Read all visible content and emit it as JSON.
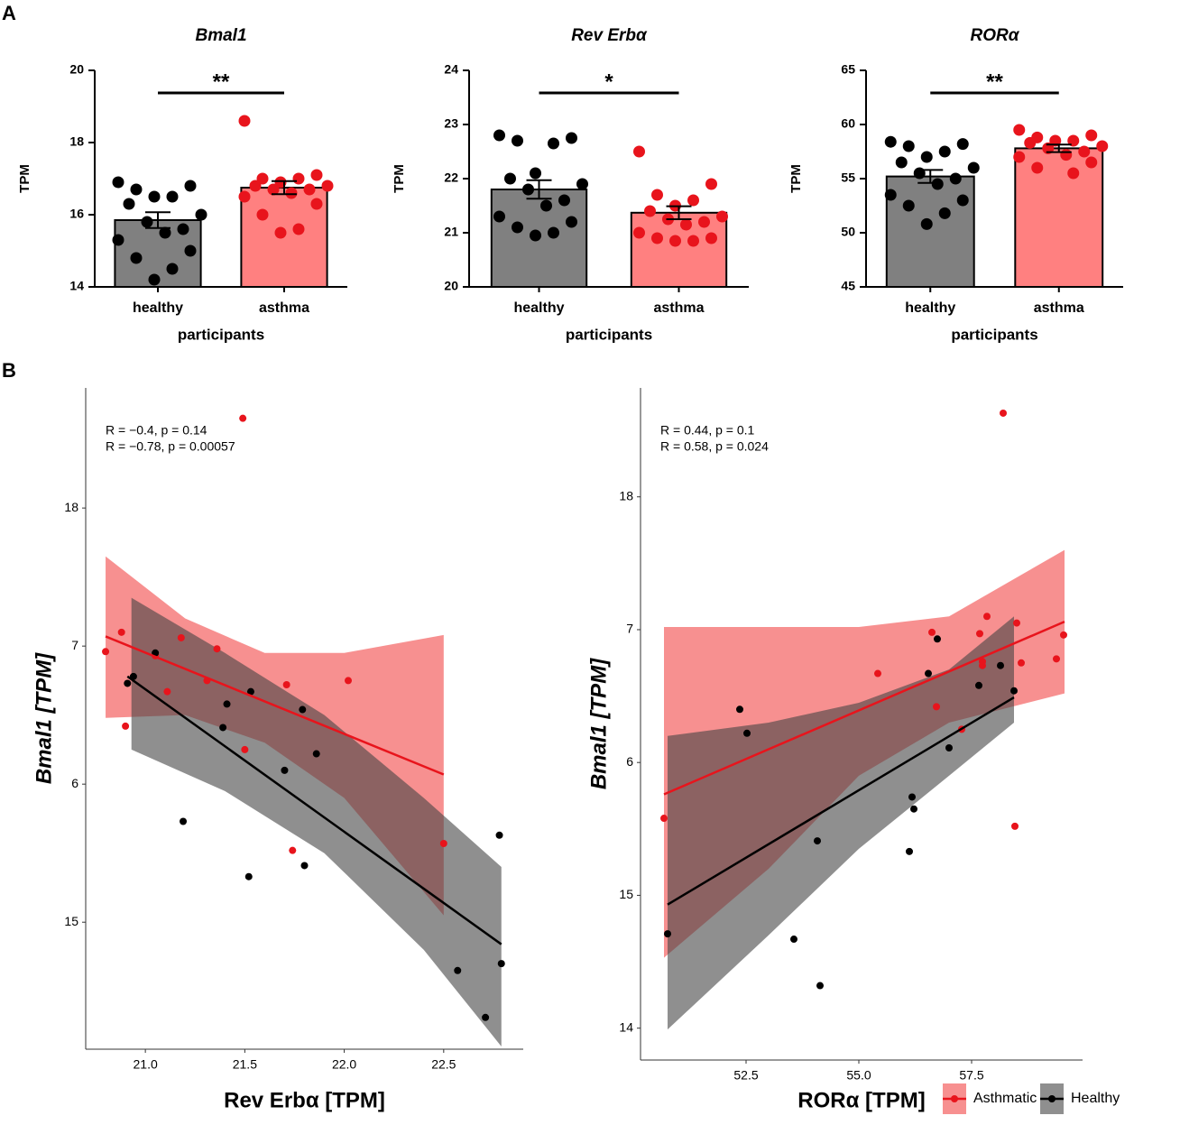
{
  "panels": [
    "A",
    "B"
  ],
  "chart_data": [
    {
      "type": "bar",
      "title": "Bmal1",
      "xlabel": "participants",
      "ylabel": "TPM",
      "categories": [
        "healthy",
        "asthma"
      ],
      "values": [
        15.85,
        16.75
      ],
      "errors": [
        0.22,
        0.18
      ],
      "colors": [
        "#808080",
        "#ff8080"
      ],
      "point_colors": [
        "#000000",
        "#e8141c"
      ],
      "points": [
        [
          16.9,
          16.8,
          16.7,
          16.5,
          16.5,
          16.3,
          16.0,
          15.8,
          15.6,
          15.5,
          15.3,
          15.0,
          14.8,
          14.5,
          14.2
        ],
        [
          18.6,
          17.1,
          17.0,
          17.0,
          16.9,
          16.8,
          16.8,
          16.7,
          16.7,
          16.6,
          16.5,
          16.3,
          16.0,
          15.6,
          15.5
        ]
      ],
      "annotation": "**",
      "ylim": [
        14,
        20
      ],
      "yticks": [
        14,
        16,
        18,
        20
      ]
    },
    {
      "type": "bar",
      "title": "Rev Erbα",
      "xlabel": "participants",
      "ylabel": "TPM",
      "categories": [
        "healthy",
        "asthma"
      ],
      "values": [
        21.8,
        21.37
      ],
      "errors": [
        0.17,
        0.12
      ],
      "colors": [
        "#808080",
        "#ff8080"
      ],
      "point_colors": [
        "#000000",
        "#e8141c"
      ],
      "points": [
        [
          22.8,
          22.75,
          22.7,
          22.65,
          22.1,
          22.0,
          21.9,
          21.8,
          21.6,
          21.5,
          21.3,
          21.2,
          21.1,
          21.0,
          20.95
        ],
        [
          22.5,
          21.9,
          21.7,
          21.6,
          21.5,
          21.4,
          21.3,
          21.25,
          21.2,
          21.15,
          21.0,
          20.9,
          20.9,
          20.85,
          20.85
        ]
      ],
      "annotation": "*",
      "ylim": [
        20,
        24
      ],
      "yticks": [
        20,
        21,
        22,
        23,
        24
      ]
    },
    {
      "type": "bar",
      "title": "RORα",
      "xlabel": "participants",
      "ylabel": "TPM",
      "categories": [
        "healthy",
        "asthma"
      ],
      "values": [
        55.2,
        57.8
      ],
      "errors": [
        0.6,
        0.35
      ],
      "colors": [
        "#808080",
        "#ff8080"
      ],
      "point_colors": [
        "#000000",
        "#e8141c"
      ],
      "points": [
        [
          58.4,
          58.2,
          58.0,
          57.5,
          57.0,
          56.5,
          56.0,
          55.5,
          55.0,
          54.5,
          53.5,
          53.0,
          52.5,
          51.8,
          50.8
        ],
        [
          59.5,
          59.0,
          58.8,
          58.5,
          58.5,
          58.3,
          58.0,
          57.8,
          57.5,
          57.2,
          57.0,
          56.5,
          56.0,
          55.5
        ]
      ],
      "annotation": "**",
      "ylim": [
        45,
        65
      ],
      "yticks": [
        45,
        50,
        55,
        60,
        65
      ]
    },
    {
      "type": "scatter",
      "xlabel": "Rev Erbα [TPM]",
      "ylabel": "Bmal1 [TPM]",
      "xlim": [
        20.7,
        22.9
      ],
      "xticks": [
        {
          "value": 21,
          "label": "21.0"
        },
        21.5,
        {
          "value": 22,
          "label": "22.0"
        },
        22.5
      ],
      "ylim": [
        14.08,
        18.87
      ],
      "yticks": [
        18,
        {
          "value": 17,
          "label": "7"
        },
        {
          "value": 16,
          "label": "6"
        },
        15
      ],
      "legend": false,
      "series": [
        {
          "name": "Asthmatic",
          "color": "#e8141c",
          "band_color": "#f46b6b",
          "annotation": "R = −0.4, p = 0.14",
          "x": [
            20.8,
            20.88,
            20.9,
            21.05,
            21.11,
            21.18,
            21.36,
            21.31,
            21.5,
            21.49,
            21.71,
            21.74,
            22.02,
            22.5
          ],
          "y": [
            16.96,
            17.1,
            16.42,
            16.93,
            16.67,
            17.06,
            16.98,
            16.75,
            16.25,
            18.65,
            16.72,
            15.52,
            16.75,
            15.57
          ],
          "fit_x": [
            20.8,
            22.5
          ],
          "fit_y": [
            17.07,
            16.07
          ],
          "band_x": [
            20.8,
            21.2,
            21.6,
            22.0,
            22.5
          ],
          "band_upper": [
            17.65,
            17.2,
            16.95,
            16.95,
            17.08
          ],
          "band_lower": [
            16.48,
            16.5,
            16.3,
            15.9,
            15.05
          ]
        },
        {
          "name": "Healthy",
          "color": "#000000",
          "band_color": "#444444",
          "annotation": "R = −0.78, p = 0.00057",
          "x": [
            20.91,
            20.94,
            21.05,
            21.19,
            21.41,
            21.39,
            21.53,
            21.52,
            21.7,
            21.79,
            21.8,
            21.86,
            22.57,
            22.71,
            22.78,
            22.79
          ],
          "y": [
            16.73,
            16.78,
            16.95,
            15.73,
            16.58,
            16.41,
            16.67,
            15.33,
            16.1,
            16.54,
            15.41,
            16.22,
            14.65,
            14.31,
            15.63,
            14.7
          ],
          "fit_x": [
            20.91,
            22.79
          ],
          "fit_y": [
            16.78,
            14.84
          ],
          "band_x": [
            20.93,
            21.4,
            21.9,
            22.4,
            22.79
          ],
          "band_upper": [
            17.35,
            16.95,
            16.5,
            15.9,
            15.4
          ],
          "band_lower": [
            16.25,
            15.95,
            15.5,
            14.8,
            14.1
          ]
        }
      ]
    },
    {
      "type": "scatter",
      "xlabel": "RORα [TPM]",
      "ylabel": "Bmal1 [TPM]",
      "xlim": [
        50.16,
        59.96
      ],
      "xticks": [
        52.5,
        {
          "value": 55,
          "label": "55.0"
        },
        57.5
      ],
      "ylim": [
        13.76,
        18.82
      ],
      "yticks": [
        18,
        {
          "value": 17,
          "label": "7"
        },
        {
          "value": 16,
          "label": "6"
        },
        15,
        14
      ],
      "legend": "bottom-right",
      "series": [
        {
          "name": "Asthmatic",
          "color": "#e8141c",
          "band_color": "#f46b6b",
          "annotation": "R = 0.44, p = 0.1",
          "x": [
            50.68,
            55.42,
            56.62,
            56.72,
            57.28,
            57.68,
            57.74,
            57.84,
            58.2,
            58.5,
            58.46,
            58.6,
            59.38,
            59.54,
            57.74
          ],
          "y": [
            15.58,
            16.67,
            16.98,
            16.42,
            16.25,
            16.97,
            16.73,
            17.1,
            18.63,
            17.05,
            15.52,
            16.75,
            16.78,
            16.96,
            16.76
          ],
          "fit_x": [
            50.68,
            59.56
          ],
          "fit_y": [
            15.76,
            17.06
          ],
          "band_x": [
            50.68,
            53,
            55,
            57,
            59.56
          ],
          "band_upper": [
            17.02,
            17.02,
            17.02,
            17.1,
            17.6
          ],
          "band_lower": [
            14.53,
            15.2,
            15.9,
            16.3,
            16.52
          ]
        },
        {
          "name": "Healthy",
          "color": "#000000",
          "band_color": "#444444",
          "annotation": "R = 0.58, p = 0.024",
          "x": [
            50.76,
            52.36,
            52.52,
            53.56,
            54.08,
            54.14,
            56.12,
            56.18,
            56.22,
            56.54,
            56.74,
            57.0,
            57.66,
            58.14,
            58.44
          ],
          "y": [
            14.71,
            16.4,
            16.22,
            14.67,
            15.41,
            14.32,
            15.33,
            15.74,
            15.65,
            16.67,
            16.93,
            16.11,
            16.58,
            16.73,
            16.54
          ],
          "fit_x": [
            50.76,
            58.44
          ],
          "fit_y": [
            14.93,
            16.49
          ],
          "band_x": [
            50.76,
            53,
            55,
            57,
            58.44
          ],
          "band_upper": [
            16.2,
            16.3,
            16.45,
            16.7,
            17.1
          ],
          "band_lower": [
            13.99,
            14.7,
            15.35,
            15.9,
            16.3
          ]
        }
      ]
    }
  ]
}
